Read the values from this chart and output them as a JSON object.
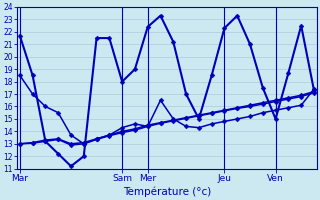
{
  "xlabel": "Température (°c)",
  "background_color": "#cce8f0",
  "grid_color": "#aaccdd",
  "line_color": "#0000bb",
  "ylim": [
    11,
    24
  ],
  "yticks": [
    11,
    12,
    13,
    14,
    15,
    16,
    17,
    18,
    19,
    20,
    21,
    22,
    23,
    24
  ],
  "day_labels": [
    "Mar",
    "Sam",
    "Mer",
    "Jeu",
    "Ven"
  ],
  "day_x": [
    0,
    8,
    10,
    16,
    20
  ],
  "xlim": [
    -0.2,
    23.2
  ],
  "series": [
    [
      21.7,
      18.5,
      13.2,
      12.2,
      11.2,
      12.0,
      21.5,
      21.5,
      18.0,
      19.0,
      22.4,
      23.3,
      21.2,
      17.0,
      15.0,
      18.5,
      22.3,
      23.3,
      21.0,
      17.5,
      15.0,
      18.7,
      22.5,
      17.3
    ],
    [
      13.0,
      13.1,
      13.3,
      13.4,
      13.0,
      13.1,
      13.4,
      13.7,
      14.0,
      14.2,
      14.5,
      14.7,
      14.9,
      15.1,
      15.3,
      15.5,
      15.7,
      15.9,
      16.1,
      16.3,
      16.5,
      16.7,
      16.9,
      17.2
    ],
    [
      13.0,
      13.05,
      13.2,
      13.35,
      12.9,
      13.0,
      13.35,
      13.65,
      13.9,
      14.1,
      14.4,
      14.65,
      14.85,
      15.05,
      15.25,
      15.45,
      15.65,
      15.85,
      16.0,
      16.2,
      16.4,
      16.6,
      16.8,
      17.1
    ],
    [
      18.5,
      17.0,
      16.0,
      15.5,
      13.7,
      13.0,
      13.4,
      13.7,
      14.3,
      14.6,
      14.4,
      16.5,
      15.0,
      14.4,
      14.3,
      14.6,
      14.8,
      15.0,
      15.2,
      15.5,
      15.7,
      15.9,
      16.1,
      17.4
    ]
  ]
}
